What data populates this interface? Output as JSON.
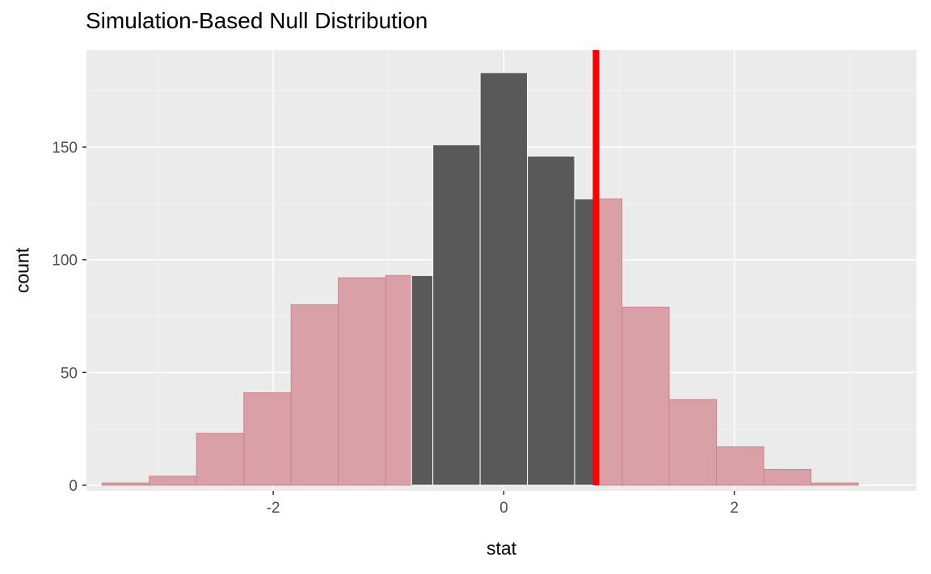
{
  "chart_data": {
    "type": "histogram",
    "title": "Simulation-Based Null Distribution",
    "xlabel": "stat",
    "ylabel": "count",
    "bin_width": 0.41,
    "bins": [
      {
        "center": -3.28,
        "count": 1
      },
      {
        "center": -2.87,
        "count": 4
      },
      {
        "center": -2.46,
        "count": 23
      },
      {
        "center": -2.05,
        "count": 41
      },
      {
        "center": -1.64,
        "count": 80
      },
      {
        "center": -1.23,
        "count": 92
      },
      {
        "center": -0.82,
        "count": 93
      },
      {
        "center": -0.41,
        "count": 151
      },
      {
        "center": 0.0,
        "count": 183
      },
      {
        "center": 0.41,
        "count": 146
      },
      {
        "center": 0.82,
        "count": 127
      },
      {
        "center": 1.23,
        "count": 79
      },
      {
        "center": 1.64,
        "count": 38
      },
      {
        "center": 2.05,
        "count": 17
      },
      {
        "center": 2.46,
        "count": 7
      },
      {
        "center": 2.87,
        "count": 1
      }
    ],
    "observed_stat": 0.8,
    "shade_direction": "two-sided",
    "x_ticks": [
      -2,
      0,
      2
    ],
    "x_minor_ticks": [
      -3,
      -1,
      1,
      3
    ],
    "y_ticks": [
      0,
      50,
      100,
      150
    ],
    "y_minor_ticks": [
      25,
      75,
      125,
      175
    ],
    "x_range": [
      -3.62,
      3.58
    ],
    "y_range": [
      -2.5,
      193
    ],
    "grid": "on",
    "legend": "none",
    "colors": {
      "panel_background": "#EBEBEB",
      "grid_major": "#FFFFFF",
      "grid_minor": "#F5F5F5",
      "bar_middle": "#595959",
      "bar_middle_stroke": "#FFFFFF",
      "bar_shaded": "#D9A0A8",
      "bar_shaded_stroke": "#C9858E",
      "observed_line": "#FF0000",
      "tick_mark": "#333333",
      "tick_label": "#4D4D4D",
      "title": "#000000"
    }
  }
}
